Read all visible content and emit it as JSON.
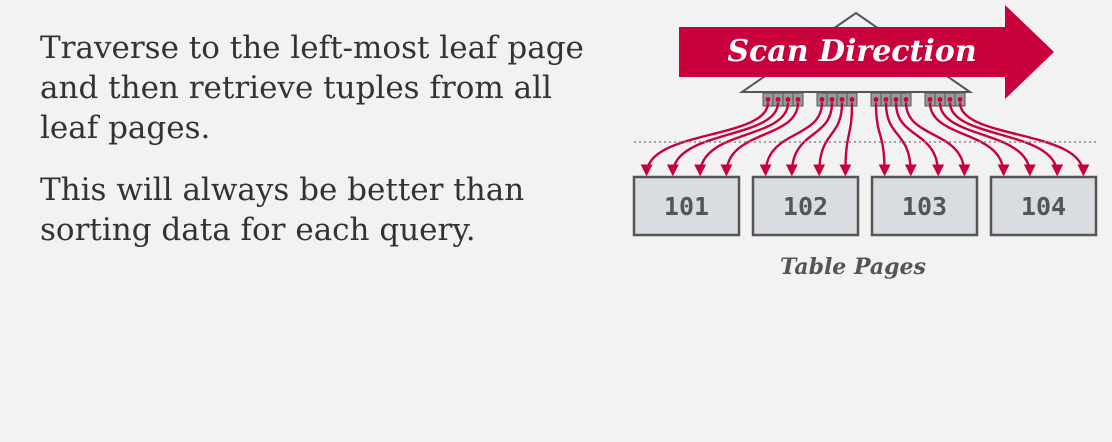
{
  "text": {
    "paragraph_1": "Traverse to the left-most leaf page and then retrieve tuples from all leaf pages.",
    "paragraph_2": "This will always be better than sorting data for each query."
  },
  "diagram": {
    "arrow_label": "Scan Direction",
    "caption": "Table Pages",
    "pages": [
      "101",
      "102",
      "103",
      "104"
    ],
    "colors": {
      "accent": "#c8003c",
      "leaf_fill": "#999999",
      "page_fill": "#d9dce0",
      "page_stroke": "#555555"
    }
  }
}
